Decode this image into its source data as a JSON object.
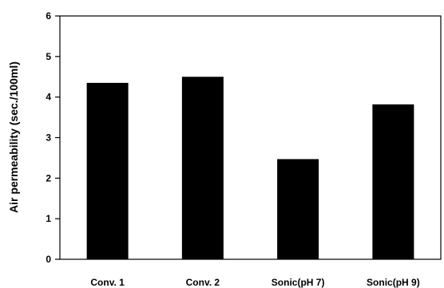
{
  "chart_data": {
    "type": "bar",
    "title": "",
    "xlabel": "",
    "ylabel": "Air permeability (sec./100ml)",
    "categories": [
      "Conv. 1",
      "Conv. 2",
      "Sonic(pH 7)",
      "Sonic(pH 9)"
    ],
    "values": [
      4.35,
      4.5,
      2.47,
      3.82
    ],
    "ylim": [
      0,
      6
    ],
    "yticks": [
      "0",
      "1",
      "2",
      "3",
      "4",
      "5",
      "6"
    ],
    "grid": false,
    "legend": "none",
    "bar_color": "#000000"
  }
}
